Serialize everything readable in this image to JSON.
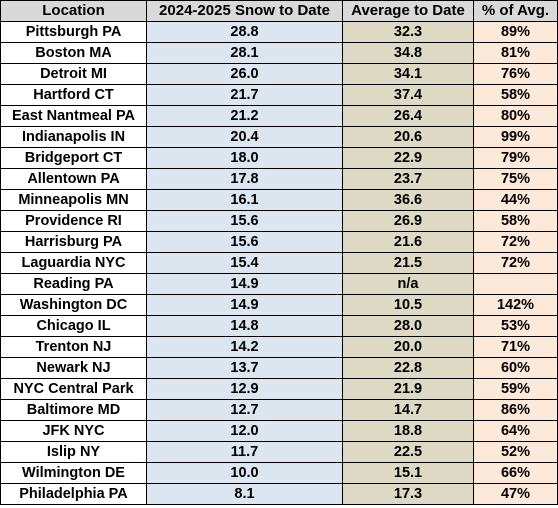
{
  "headers": {
    "location": "Location",
    "snow": "2024-2025 Snow to Date",
    "avg": "Average to Date",
    "pct": "% of Avg."
  },
  "rows": [
    {
      "location": "Pittsburgh PA",
      "snow": "28.8",
      "avg": "32.3",
      "pct": "89%"
    },
    {
      "location": "Boston MA",
      "snow": "28.1",
      "avg": "34.8",
      "pct": "81%"
    },
    {
      "location": "Detroit MI",
      "snow": "26.0",
      "avg": "34.1",
      "pct": "76%"
    },
    {
      "location": "Hartford CT",
      "snow": "21.7",
      "avg": "37.4",
      "pct": "58%"
    },
    {
      "location": "East Nantmeal PA",
      "snow": "21.2",
      "avg": "26.4",
      "pct": "80%"
    },
    {
      "location": "Indianapolis IN",
      "snow": "20.4",
      "avg": "20.6",
      "pct": "99%"
    },
    {
      "location": "Bridgeport CT",
      "snow": "18.0",
      "avg": "22.9",
      "pct": "79%"
    },
    {
      "location": "Allentown PA",
      "snow": "17.8",
      "avg": "23.7",
      "pct": "75%"
    },
    {
      "location": "Minneapolis MN",
      "snow": "16.1",
      "avg": "36.6",
      "pct": "44%"
    },
    {
      "location": "Providence RI",
      "snow": "15.6",
      "avg": "26.9",
      "pct": "58%"
    },
    {
      "location": "Harrisburg PA",
      "snow": "15.6",
      "avg": "21.6",
      "pct": "72%"
    },
    {
      "location": "Laguardia NYC",
      "snow": "15.4",
      "avg": "21.5",
      "pct": "72%"
    },
    {
      "location": "Reading PA",
      "snow": "14.9",
      "avg": "n/a",
      "pct": ""
    },
    {
      "location": "Washington DC",
      "snow": "14.9",
      "avg": "10.5",
      "pct": "142%"
    },
    {
      "location": "Chicago IL",
      "snow": "14.8",
      "avg": "28.0",
      "pct": "53%"
    },
    {
      "location": "Trenton NJ",
      "snow": "14.2",
      "avg": "20.0",
      "pct": "71%"
    },
    {
      "location": "Newark NJ",
      "snow": "13.7",
      "avg": "22.8",
      "pct": "60%"
    },
    {
      "location": "NYC Central Park",
      "snow": "12.9",
      "avg": "21.9",
      "pct": "59%"
    },
    {
      "location": "Baltimore MD",
      "snow": "12.7",
      "avg": "14.7",
      "pct": "86%"
    },
    {
      "location": "JFK NYC",
      "snow": "12.0",
      "avg": "18.8",
      "pct": "64%"
    },
    {
      "location": "Islip NY",
      "snow": "11.7",
      "avg": "22.5",
      "pct": "52%"
    },
    {
      "location": "Wilmington DE",
      "snow": "10.0",
      "avg": "15.1",
      "pct": "66%"
    },
    {
      "location": "Philadelphia PA",
      "snow": "8.1",
      "avg": "17.3",
      "pct": "47%"
    }
  ]
}
